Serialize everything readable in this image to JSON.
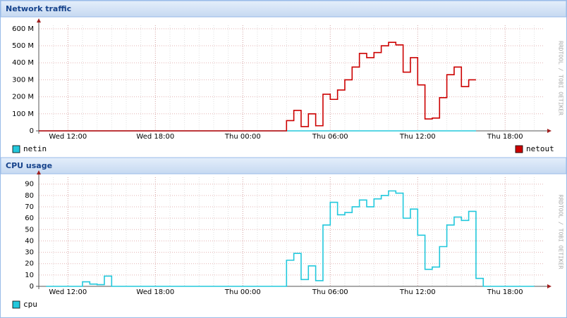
{
  "watermark": "RRDTOOL / TOBI OETIKER",
  "chart_data": [
    {
      "type": "line",
      "step": true,
      "title": "Network traffic",
      "xlim": [
        10,
        44.6
      ],
      "ylim": [
        0,
        620
      ],
      "xticks": [
        {
          "value": 12,
          "label": "Wed 12:00"
        },
        {
          "value": 18,
          "label": "Wed 18:00"
        },
        {
          "value": 24,
          "label": "Thu 00:00"
        },
        {
          "value": 30,
          "label": "Thu 06:00"
        },
        {
          "value": 36,
          "label": "Thu 12:00"
        },
        {
          "value": 42,
          "label": "Thu 18:00"
        }
      ],
      "yticks": [
        0,
        {
          "value": 100,
          "label": "100 M"
        },
        {
          "value": 200,
          "label": "200 M"
        },
        {
          "value": 300,
          "label": "300 M"
        },
        {
          "value": 400,
          "label": "400 M"
        },
        {
          "value": 500,
          "label": "500 M"
        },
        {
          "value": 600,
          "label": "600 M"
        }
      ],
      "grid": true,
      "x": [
        10,
        27,
        27.5,
        28,
        28.5,
        29,
        29.5,
        30,
        30.5,
        31,
        31.5,
        32,
        32.5,
        33,
        33.5,
        34,
        34.5,
        35,
        35.5,
        36,
        36.5,
        37,
        37.5,
        38,
        38.5,
        39,
        39.5,
        40
      ],
      "series": [
        {
          "name": "netin",
          "color": "#22c8dc",
          "values": [
            0,
            0,
            0,
            0,
            0,
            0,
            0,
            0,
            0,
            0,
            0,
            0,
            0,
            0,
            0,
            0,
            0,
            0,
            0,
            0,
            0,
            0,
            0,
            0,
            0,
            0,
            0,
            0
          ]
        },
        {
          "name": "netout",
          "color": "#cc0000",
          "values": [
            0,
            60,
            120,
            25,
            100,
            30,
            215,
            185,
            240,
            300,
            375,
            455,
            430,
            460,
            500,
            520,
            505,
            345,
            430,
            270,
            70,
            75,
            195,
            330,
            375,
            260,
            300,
            300
          ]
        }
      ]
    },
    {
      "type": "line",
      "step": true,
      "title": "CPU usage",
      "xlim": [
        10,
        44.6
      ],
      "ylim": [
        0,
        96
      ],
      "xticks": [
        {
          "value": 12,
          "label": "Wed 12:00"
        },
        {
          "value": 18,
          "label": "Wed 18:00"
        },
        {
          "value": 24,
          "label": "Thu 00:00"
        },
        {
          "value": 30,
          "label": "Thu 06:00"
        },
        {
          "value": 36,
          "label": "Thu 12:00"
        },
        {
          "value": 42,
          "label": "Thu 18:00"
        }
      ],
      "yticks": [
        0,
        10,
        20,
        30,
        40,
        50,
        60,
        70,
        80,
        90
      ],
      "grid": true,
      "x": [
        10.5,
        13,
        13.5,
        14,
        14.5,
        15,
        27,
        27.5,
        28,
        28.5,
        29,
        29.5,
        30,
        30.5,
        31,
        31.5,
        32,
        32.5,
        33,
        33.5,
        34,
        34.5,
        35,
        35.5,
        36,
        36.5,
        37,
        37.5,
        38,
        38.5,
        39,
        39.5,
        40,
        40.5,
        44
      ],
      "series": [
        {
          "name": "cpu",
          "color": "#22c8dc",
          "values": [
            0,
            4,
            2,
            1.5,
            9,
            0,
            23,
            29,
            6,
            18,
            5,
            54,
            74,
            63,
            65,
            70,
            76,
            70,
            77,
            80,
            84,
            82,
            60,
            68,
            45,
            15,
            17,
            35,
            54,
            61,
            58,
            66,
            7,
            0,
            0
          ]
        }
      ]
    }
  ]
}
